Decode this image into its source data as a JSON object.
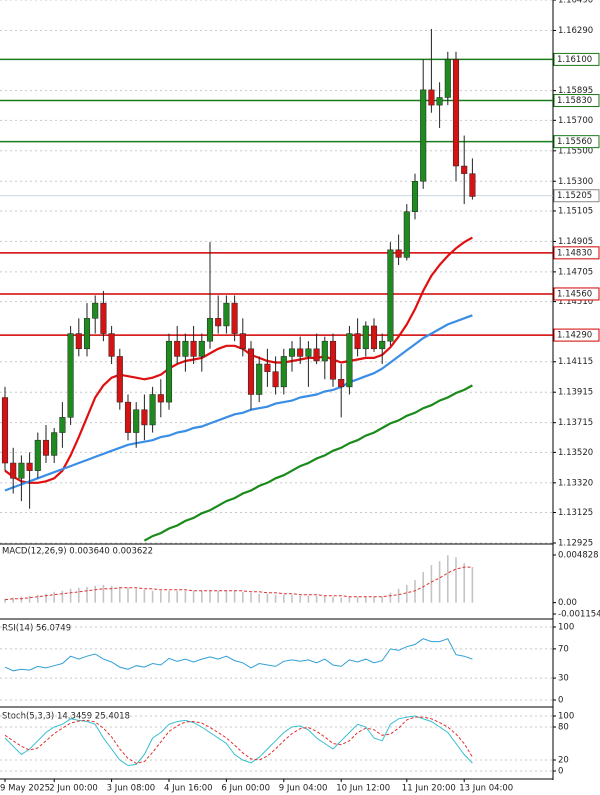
{
  "chart_data": [
    {
      "type": "candlestick",
      "categories": [
        "9 May 2025",
        null,
        null,
        null,
        null,
        null,
        "2 Jun 00:00",
        null,
        null,
        null,
        null,
        null,
        null,
        "3 Jun 08:00",
        null,
        null,
        null,
        null,
        null,
        null,
        "4 Jun 16:00",
        null,
        null,
        null,
        null,
        null,
        null,
        "6 Jun 00:00",
        null,
        null,
        null,
        null,
        null,
        null,
        "9 Jun 04:00",
        null,
        null,
        null,
        null,
        null,
        null,
        "10 Jun 12:00",
        null,
        null,
        null,
        null,
        null,
        null,
        null,
        "11 Jun 20:00",
        null,
        null,
        null,
        null,
        null,
        null,
        "13 Jun 04:00",
        null
      ],
      "open": [
        1.1388,
        1.1345,
        1.1335,
        1.1345,
        1.134,
        1.136,
        1.135,
        1.1365,
        1.1375,
        1.143,
        1.142,
        1.144,
        1.145,
        1.143,
        1.1415,
        1.1385,
        1.1365,
        1.138,
        1.137,
        1.139,
        1.1385,
        1.1425,
        1.1415,
        1.1425,
        1.1415,
        1.1425,
        1.144,
        1.1435,
        1.145,
        1.143,
        1.142,
        1.139,
        1.141,
        1.1405,
        1.1395,
        1.1415,
        1.142,
        1.1415,
        1.142,
        1.1412,
        1.1425,
        1.14,
        1.1395,
        1.143,
        1.142,
        1.1435,
        1.142,
        1.1425,
        1.1485,
        1.148,
        1.151,
        1.153,
        1.159,
        1.158,
        1.1585,
        1.161,
        1.154,
        1.1535
      ],
      "high": [
        1.1395,
        1.1355,
        1.135,
        1.1352,
        1.1365,
        1.137,
        1.1368,
        1.1385,
        1.1435,
        1.144,
        1.145,
        1.1455,
        1.1458,
        1.1435,
        1.142,
        1.139,
        1.1385,
        1.139,
        1.1395,
        1.14,
        1.143,
        1.1435,
        1.143,
        1.1435,
        1.143,
        1.149,
        1.1455,
        1.1455,
        1.1455,
        1.144,
        1.1425,
        1.1415,
        1.142,
        1.1415,
        1.142,
        1.1425,
        1.1428,
        1.1425,
        1.143,
        1.1428,
        1.143,
        1.141,
        1.1435,
        1.144,
        1.1438,
        1.144,
        1.143,
        1.149,
        1.1495,
        1.1515,
        1.1535,
        1.161,
        1.163,
        1.1595,
        1.1615,
        1.1615,
        1.156,
        1.1545
      ],
      "low": [
        1.134,
        1.1325,
        1.132,
        1.1315,
        1.1335,
        1.1345,
        1.1345,
        1.1355,
        1.137,
        1.1415,
        1.1415,
        1.143,
        1.1425,
        1.141,
        1.138,
        1.136,
        1.1355,
        1.136,
        1.1365,
        1.1375,
        1.138,
        1.141,
        1.1405,
        1.141,
        1.1405,
        1.142,
        1.143,
        1.143,
        1.1425,
        1.1415,
        1.138,
        1.1385,
        1.1395,
        1.139,
        1.139,
        1.1405,
        1.141,
        1.1395,
        1.141,
        1.14,
        1.1395,
        1.1375,
        1.139,
        1.1415,
        1.1415,
        1.1418,
        1.141,
        1.1422,
        1.1475,
        1.1478,
        1.1505,
        1.1525,
        1.1575,
        1.1565,
        1.158,
        1.153,
        1.1515,
        1.1518
      ],
      "close": [
        1.1345,
        1.1335,
        1.1345,
        1.134,
        1.136,
        1.135,
        1.1365,
        1.1375,
        1.143,
        1.142,
        1.144,
        1.145,
        1.143,
        1.1415,
        1.1385,
        1.1365,
        1.138,
        1.137,
        1.139,
        1.1385,
        1.1425,
        1.1415,
        1.1425,
        1.1415,
        1.1425,
        1.144,
        1.1435,
        1.145,
        1.143,
        1.142,
        1.139,
        1.141,
        1.1405,
        1.1395,
        1.1415,
        1.142,
        1.1415,
        1.142,
        1.1412,
        1.1425,
        1.14,
        1.1395,
        1.143,
        1.142,
        1.1435,
        1.142,
        1.1425,
        1.1485,
        1.148,
        1.151,
        1.153,
        1.159,
        1.158,
        1.1585,
        1.161,
        1.154,
        1.1535,
        1.152
      ],
      "up_color": "#1f8a1f",
      "down_color": "#d41414",
      "overlays": [
        {
          "color": "#e01010",
          "values": [
            1.134,
            1.1336,
            1.1333,
            1.1332,
            1.1332,
            1.1333,
            1.1335,
            1.134,
            1.135,
            1.1362,
            1.1375,
            1.1388,
            1.1396,
            1.1401,
            1.1403,
            1.1402,
            1.1401,
            1.14,
            1.1401,
            1.1403,
            1.1407,
            1.141,
            1.1412,
            1.1413,
            1.1414,
            1.1417,
            1.142,
            1.1422,
            1.1422,
            1.142,
            1.1416,
            1.1414,
            1.1412,
            1.1411,
            1.1411,
            1.1412,
            1.1413,
            1.1414,
            1.1414,
            1.1415,
            1.1413,
            1.1411,
            1.1412,
            1.1413,
            1.1414,
            1.1414,
            1.1416,
            1.1421,
            1.1428,
            1.1436,
            1.1446,
            1.1458,
            1.1468,
            1.1475,
            1.1481,
            1.1486,
            1.149,
            1.1493
          ]
        },
        {
          "color": "#3a8ee6",
          "values": [
            1.1327,
            1.1329,
            1.1331,
            1.1333,
            1.1335,
            1.1337,
            1.1339,
            1.1341,
            1.1343,
            1.1345,
            1.1347,
            1.1349,
            1.1351,
            1.1353,
            1.1355,
            1.1357,
            1.1358,
            1.1359,
            1.136,
            1.1362,
            1.1363,
            1.1365,
            1.1366,
            1.1368,
            1.1369,
            1.1371,
            1.1373,
            1.1375,
            1.1377,
            1.1378,
            1.138,
            1.1381,
            1.1382,
            1.1384,
            1.1385,
            1.1386,
            1.1388,
            1.1389,
            1.139,
            1.1392,
            1.1393,
            1.1395,
            1.1398,
            1.14,
            1.1402,
            1.1404,
            1.1407,
            1.1411,
            1.1415,
            1.1419,
            1.1423,
            1.1427,
            1.143,
            1.1433,
            1.1436,
            1.1438,
            1.144,
            1.1442
          ]
        },
        {
          "color": "#1a8a1a",
          "values": [
            null,
            null,
            null,
            null,
            null,
            null,
            null,
            null,
            null,
            null,
            null,
            null,
            null,
            null,
            null,
            null,
            null,
            1.1294,
            1.1297,
            1.1299,
            1.1302,
            1.1304,
            1.1307,
            1.1309,
            1.1312,
            1.1314,
            1.1317,
            1.132,
            1.1322,
            1.1325,
            1.1327,
            1.133,
            1.1332,
            1.1335,
            1.1337,
            1.134,
            1.1343,
            1.1345,
            1.1348,
            1.135,
            1.1353,
            1.1355,
            1.1358,
            1.136,
            1.1363,
            1.1365,
            1.1368,
            1.1371,
            1.1373,
            1.1376,
            1.1378,
            1.1381,
            1.1383,
            1.1386,
            1.1388,
            1.1391,
            1.1393,
            1.1396
          ]
        }
      ],
      "ylim": [
        1.12925,
        1.1649
      ],
      "yticks": [
        {
          "value": 1.1649,
          "label": "1.16490"
        },
        {
          "value": 1.1629,
          "label": "1.16290"
        },
        1.15895,
        {
          "value": 1.157,
          "label": "1.15700"
        },
        {
          "value": 1.155,
          "label": "1.15500"
        },
        {
          "value": 1.153,
          "label": "1.15300"
        },
        1.15105,
        1.14905,
        1.14705,
        {
          "value": 1.1451,
          "label": "1.14510"
        },
        1.14115,
        1.13915,
        1.13715,
        {
          "value": 1.1352,
          "label": "1.13520"
        },
        {
          "value": 1.1332,
          "label": "1.13320"
        },
        1.13125,
        1.12925
      ],
      "levels": [
        {
          "value": 1.161,
          "label": "1.16100",
          "color": "#1a7a1a"
        },
        {
          "value": 1.1583,
          "label": "1.15830",
          "color": "#1a7a1a"
        },
        {
          "value": 1.1556,
          "label": "1.15560",
          "color": "#1a7a1a"
        },
        {
          "value": 1.1483,
          "label": "1.14830",
          "color": "#d00000"
        },
        {
          "value": 1.1456,
          "label": "1.14560",
          "color": "#d00000"
        },
        {
          "value": 1.1429,
          "label": "1.14290",
          "color": "#d00000"
        }
      ],
      "current_price": {
        "value": 1.15205,
        "label": "1.15205"
      },
      "grid": true
    },
    {
      "type": "macd",
      "title": "MACD(12,26,9) 0.003640 0.003622",
      "values": [
        0.0004,
        0.0005,
        0.0006,
        0.0007,
        0.0008,
        0.0009,
        0.0011,
        0.0012,
        0.0014,
        0.0015,
        0.0016,
        0.0017,
        0.0018,
        0.0017,
        0.0016,
        0.0015,
        0.0014,
        0.0013,
        0.0012,
        0.0012,
        0.0012,
        0.0012,
        0.0012,
        0.0012,
        0.0012,
        0.0012,
        0.0012,
        0.0012,
        0.0012,
        0.0011,
        0.001,
        0.0009,
        0.0009,
        0.0008,
        0.0008,
        0.0008,
        0.0007,
        0.0007,
        0.0007,
        0.0007,
        0.0006,
        0.0005,
        0.0006,
        0.0006,
        0.0006,
        0.0006,
        0.0006,
        0.001,
        0.0014,
        0.0018,
        0.0023,
        0.0031,
        0.0038,
        0.0042,
        0.0048,
        0.0046,
        0.004,
        0.0036
      ],
      "signal": [
        0.0003,
        0.0004,
        0.0004,
        0.0005,
        0.0006,
        0.0007,
        0.0008,
        0.0009,
        0.001,
        0.0011,
        0.0012,
        0.0013,
        0.0014,
        0.0014,
        0.0015,
        0.0015,
        0.0015,
        0.0014,
        0.0014,
        0.0013,
        0.0013,
        0.0013,
        0.0013,
        0.0012,
        0.0012,
        0.0012,
        0.0012,
        0.0012,
        0.0012,
        0.0012,
        0.0011,
        0.0011,
        0.001,
        0.001,
        0.0009,
        0.0009,
        0.0008,
        0.0008,
        0.0008,
        0.0007,
        0.0007,
        0.0007,
        0.0006,
        0.0006,
        0.0006,
        0.0006,
        0.0006,
        0.0007,
        0.0008,
        0.001,
        0.0012,
        0.0016,
        0.0021,
        0.0025,
        0.003,
        0.0034,
        0.0036,
        0.0036
      ],
      "color": "#c4c4c4",
      "signal_color": "#e03030",
      "ylim": [
        -0.001154,
        0.004828
      ],
      "yticks": [
        0.004828,
        {
          "value": 0,
          "label": "0.00"
        },
        -0.001154
      ]
    },
    {
      "type": "line",
      "title": "RSI(14) 56.0749",
      "series": [
        {
          "color": "#2f9fd8",
          "values": [
            45,
            40,
            42,
            41,
            46,
            44,
            47,
            50,
            60,
            56,
            60,
            63,
            56,
            52,
            45,
            42,
            47,
            45,
            50,
            48,
            57,
            53,
            56,
            52,
            56,
            59,
            56,
            60,
            54,
            51,
            44,
            50,
            48,
            46,
            53,
            55,
            53,
            55,
            51,
            56,
            48,
            46,
            55,
            52,
            56,
            51,
            54,
            70,
            68,
            73,
            76,
            84,
            80,
            80,
            84,
            62,
            60,
            56.0749
          ]
        }
      ],
      "ylim": [
        0,
        100
      ],
      "yticks": [
        100,
        70,
        30,
        0
      ]
    },
    {
      "type": "line",
      "title": "Stoch(5,3,3) 14.3459 25.4018",
      "series": [
        {
          "color": "#35bfd0",
          "values": [
            60,
            45,
            30,
            40,
            55,
            70,
            80,
            85,
            95,
            92,
            90,
            85,
            60,
            40,
            20,
            10,
            12,
            30,
            60,
            70,
            85,
            90,
            92,
            88,
            80,
            70,
            60,
            50,
            30,
            20,
            15,
            25,
            40,
            55,
            70,
            80,
            82,
            75,
            60,
            50,
            40,
            55,
            70,
            85,
            80,
            60,
            55,
            85,
            95,
            98,
            100,
            95,
            90,
            80,
            70,
            50,
            30,
            14.3459
          ]
        },
        {
          "color": "#e03030",
          "dashed": true,
          "values": [
            65,
            55,
            45,
            38,
            42,
            55,
            68,
            78,
            87,
            91,
            92,
            89,
            78,
            62,
            40,
            23,
            14,
            17,
            34,
            53,
            72,
            82,
            89,
            90,
            87,
            79,
            70,
            60,
            47,
            33,
            22,
            20,
            27,
            40,
            55,
            68,
            77,
            79,
            72,
            62,
            50,
            48,
            55,
            70,
            78,
            75,
            65,
            67,
            78,
            93,
            98,
            98,
            95,
            88,
            80,
            67,
            50,
            25.4018
          ]
        }
      ],
      "ylim": [
        0,
        100
      ],
      "yticks": [
        100,
        80,
        20,
        0
      ]
    }
  ]
}
